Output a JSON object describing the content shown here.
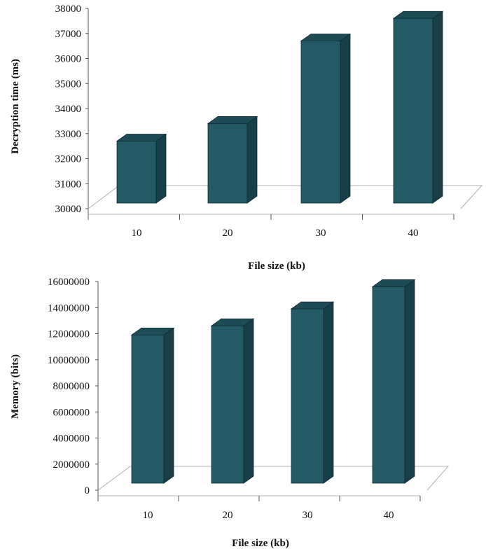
{
  "colors": {
    "bar_front": "#235a66",
    "bar_side": "#183f48",
    "bar_top": "#1d4c57",
    "bar_edge": "#0e2a31",
    "floor_line": "#b0b0b0",
    "axis_line": "#555555"
  },
  "chart_data": [
    {
      "type": "bar",
      "style": "3d",
      "categories": [
        "10",
        "20",
        "30",
        "40"
      ],
      "values": [
        32700,
        33400,
        36700,
        37600
      ],
      "title": "",
      "xlabel": "File size (kb)",
      "ylabel": "Decryption time (ms)",
      "ylim": [
        30000,
        38000
      ],
      "yticks": [
        "30000",
        "31000",
        "32000",
        "33000",
        "34000",
        "35000",
        "36000",
        "37000",
        "38000"
      ],
      "grid": false
    },
    {
      "type": "bar",
      "style": "3d",
      "categories": [
        "10",
        "20",
        "30",
        "40"
      ],
      "values": [
        11900000,
        12600000,
        13900000,
        15600000
      ],
      "title": "",
      "xlabel": "File size (kb)",
      "ylabel": "Memory (bits)",
      "ylim": [
        0,
        16000000
      ],
      "yticks": [
        "0",
        "2000000",
        "4000000",
        "6000000",
        "8000000",
        "10000000",
        "12000000",
        "14000000",
        "16000000"
      ],
      "grid": false
    }
  ]
}
